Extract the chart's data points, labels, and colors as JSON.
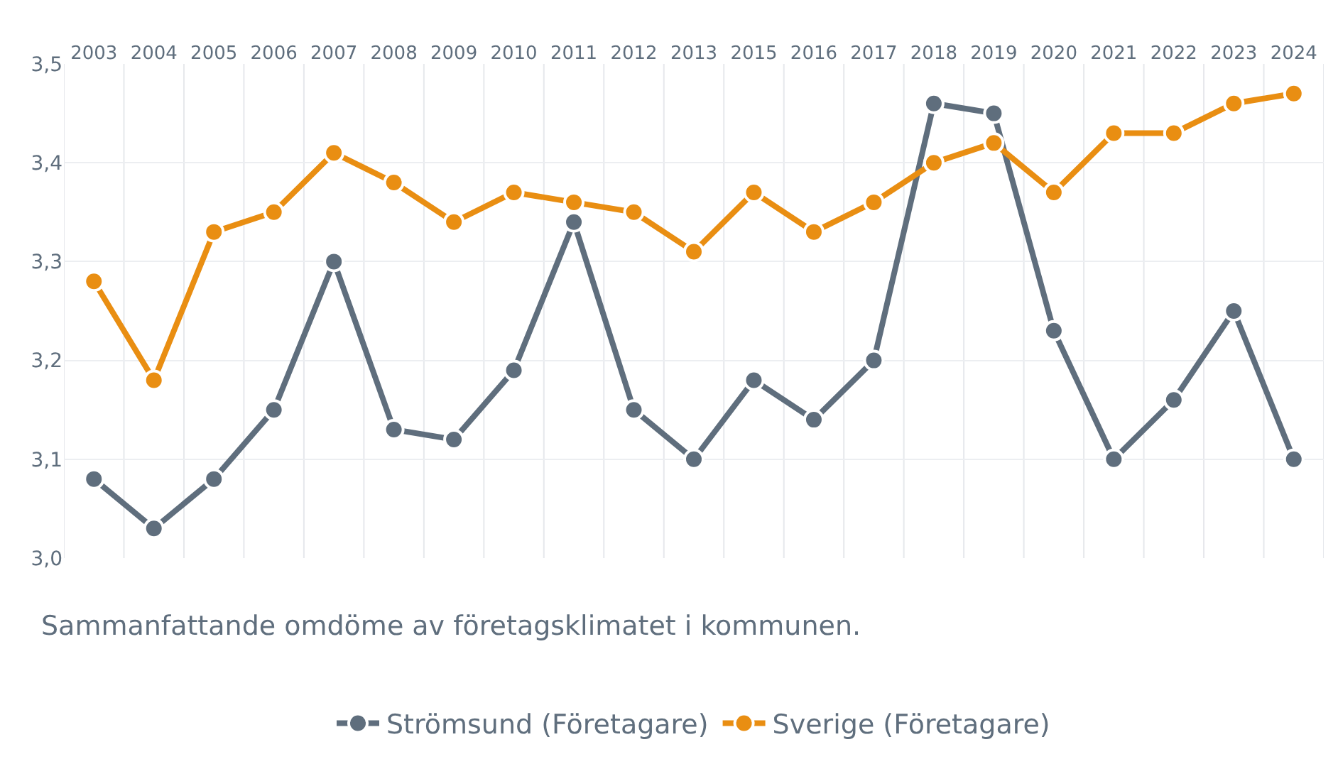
{
  "chart_data": {
    "type": "line",
    "categories": [
      "2003",
      "2004",
      "2005",
      "2006",
      "2007",
      "2008",
      "2009",
      "2010",
      "2011",
      "2012",
      "2013",
      "2015",
      "2016",
      "2017",
      "2018",
      "2019",
      "2020",
      "2021",
      "2022",
      "2023",
      "2024"
    ],
    "series": [
      {
        "name": "Strömsund (Företagare)",
        "color": "#5f6e7d",
        "values": [
          3.08,
          3.03,
          3.08,
          3.15,
          3.3,
          3.13,
          3.12,
          3.19,
          3.34,
          3.15,
          3.1,
          3.18,
          3.14,
          3.2,
          3.46,
          3.45,
          3.23,
          3.1,
          3.16,
          3.25,
          3.1
        ]
      },
      {
        "name": "Sverige (Företagare)",
        "color": "#e98e12",
        "values": [
          3.28,
          3.18,
          3.33,
          3.35,
          3.41,
          3.38,
          3.34,
          3.37,
          3.36,
          3.35,
          3.31,
          3.37,
          3.33,
          3.36,
          3.4,
          3.42,
          3.37,
          3.43,
          3.43,
          3.46,
          3.47
        ]
      }
    ],
    "ylim": [
      3.0,
      3.5
    ],
    "yticks": [
      {
        "value": 3.0,
        "label": "3,0"
      },
      {
        "value": 3.1,
        "label": "3,1"
      },
      {
        "value": 3.2,
        "label": "3,2"
      },
      {
        "value": 3.3,
        "label": "3,3"
      },
      {
        "value": 3.4,
        "label": "3,4"
      },
      {
        "value": 3.5,
        "label": "3,5"
      }
    ],
    "grid": true,
    "legend": "bottom",
    "marker": "circle",
    "line_style": "solid",
    "annotations": [
      "Sammanfattande omdöme av företagsklimatet i kommunen."
    ]
  }
}
